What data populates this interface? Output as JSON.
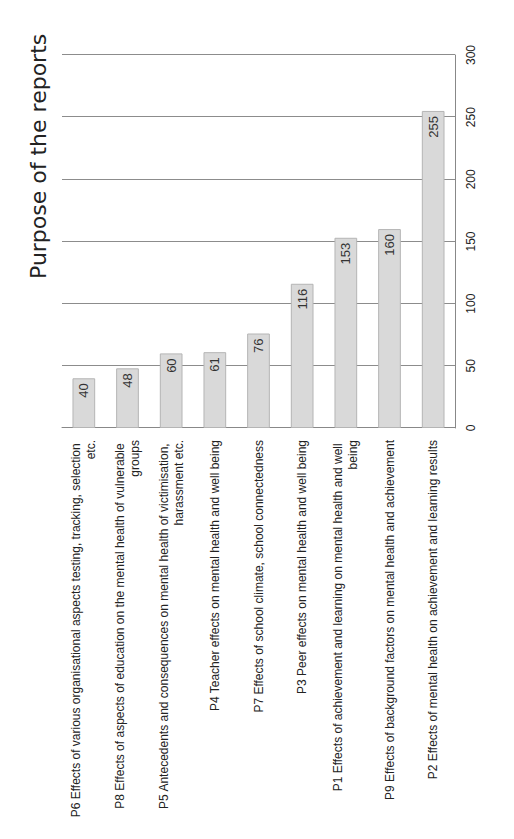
{
  "chart_data": {
    "type": "bar",
    "orientation": "horizontal",
    "title": "Purpose of the reports",
    "categories": [
      "P6 Effects of various organisational aspects testing, tracking, selection etc.",
      "P8 Effects of aspects of education on the mental health of vulnerable groups",
      "P5 Antecedents and consequences on mental health of victimisation, harassment etc.",
      "P4 Teacher effects on mental health and well being",
      "P7 Effects of school climate, school connectedness",
      "P3 Peer effects on mental health and well being",
      "P1 Effects of achievement and learning on mental health and well being",
      "P9 Effects of background factors on mental health and achievement",
      "P2 Effects of mental health on achievement and learning results"
    ],
    "values": [
      40,
      48,
      60,
      61,
      76,
      116,
      153,
      160,
      255
    ],
    "color": "#d9d9d9",
    "xlim": [
      0,
      300
    ],
    "xticks": [
      0,
      50,
      100,
      150,
      200,
      250,
      300
    ],
    "grid": true,
    "data_labels": true
  }
}
